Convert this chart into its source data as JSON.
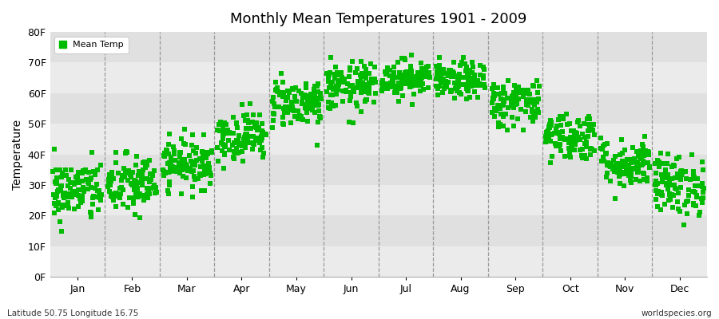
{
  "title": "Monthly Mean Temperatures 1901 - 2009",
  "ylabel": "Temperature",
  "xlabel_months": [
    "Jan",
    "Feb",
    "Mar",
    "Apr",
    "May",
    "Jun",
    "Jul",
    "Aug",
    "Sep",
    "Oct",
    "Nov",
    "Dec"
  ],
  "ytick_labels": [
    "0F",
    "10F",
    "20F",
    "30F",
    "40F",
    "50F",
    "60F",
    "70F",
    "80F"
  ],
  "ytick_values": [
    0,
    10,
    20,
    30,
    40,
    50,
    60,
    70,
    80
  ],
  "ylim": [
    0,
    80
  ],
  "dot_color": "#00bb00",
  "bg_color": "#ebebeb",
  "band_alt_color": "#e0e0e0",
  "footer_left": "Latitude 50.75 Longitude 16.75",
  "footer_right": "worldspecies.org",
  "legend_label": "Mean Temp",
  "monthly_mean_f": [
    28,
    30,
    37,
    46,
    57,
    62,
    65,
    64,
    57,
    46,
    37,
    30
  ],
  "monthly_std_f": [
    5,
    5,
    4,
    4,
    4,
    4,
    3,
    3,
    4,
    4,
    4,
    5
  ],
  "n_years": 109,
  "seed": 42
}
